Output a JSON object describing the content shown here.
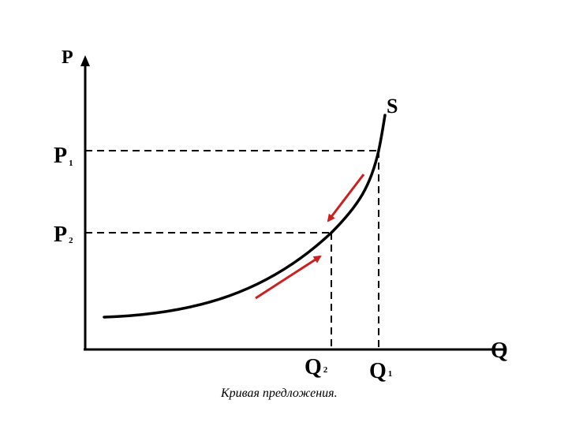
{
  "axes": {
    "y_label": "P",
    "x_label": "Q"
  },
  "curve_label": "S",
  "price_levels": [
    {
      "main": "P",
      "sub": "1"
    },
    {
      "main": "P",
      "sub": "2"
    }
  ],
  "quantity_levels": [
    {
      "main": "Q",
      "sub": "2"
    },
    {
      "main": "Q",
      "sub": "1"
    }
  ],
  "caption": "Кривая предложения.",
  "colors": {
    "curve": "#000000",
    "arrows": "#cc1f1f",
    "guides": "#000000"
  },
  "arrows": [
    "arrow-down-along-curve",
    "arrow-up-along-curve"
  ]
}
